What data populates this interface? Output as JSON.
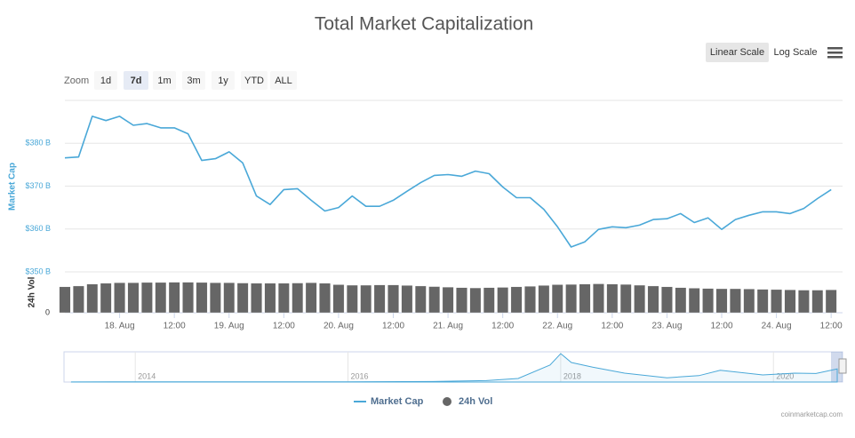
{
  "chart_data": {
    "type": "line",
    "title": "Total Market Capitalization",
    "scale_buttons": [
      "Linear Scale",
      "Log Scale"
    ],
    "selected_scale": "Linear Scale",
    "zoom": {
      "label": "Zoom",
      "buttons": [
        "1d",
        "7d",
        "1m",
        "3m",
        "1y",
        "YTD",
        "ALL"
      ],
      "selected": "7d"
    },
    "y_label": "Market Cap",
    "y2_label": "24h Vol",
    "credits": "coinmarketcap.com",
    "legend": "bottom",
    "grid": true,
    "xlim": [
      "Aug 17 12:00",
      "Aug 24 14:30"
    ],
    "xticks": [
      {
        "value": "Aug 18 00:00",
        "label": "18. Aug"
      },
      {
        "value": "Aug 18 12:00",
        "label": "12:00"
      },
      {
        "value": "Aug 19 00:00",
        "label": "19. Aug"
      },
      {
        "value": "Aug 19 12:00",
        "label": "12:00"
      },
      {
        "value": "Aug 20 00:00",
        "label": "20. Aug"
      },
      {
        "value": "Aug 20 12:00",
        "label": "12:00"
      },
      {
        "value": "Aug 21 00:00",
        "label": "21. Aug"
      },
      {
        "value": "Aug 21 12:00",
        "label": "12:00"
      },
      {
        "value": "Aug 22 00:00",
        "label": "22. Aug"
      },
      {
        "value": "Aug 22 12:00",
        "label": "12:00"
      },
      {
        "value": "Aug 23 00:00",
        "label": "23. Aug"
      },
      {
        "value": "Aug 23 12:00",
        "label": "12:00"
      },
      {
        "value": "Aug 24 00:00",
        "label": "24. Aug"
      },
      {
        "value": "Aug 24 12:00",
        "label": "12:00"
      }
    ],
    "ylim": [
      350,
      390
    ],
    "yticks": [
      {
        "value": 350,
        "label": "$350 B"
      },
      {
        "value": 360,
        "label": "$360 B"
      },
      {
        "value": 370,
        "label": "$370 B"
      },
      {
        "value": 380,
        "label": "$380 B"
      }
    ],
    "y2lim": [
      0,
      150
    ],
    "y2ticks": [
      0
    ],
    "x": [
      "Aug 17 12:00",
      "Aug 17 15:00",
      "Aug 17 18:00",
      "Aug 17 21:00",
      "Aug 18 00:00",
      "Aug 18 03:00",
      "Aug 18 06:00",
      "Aug 18 09:00",
      "Aug 18 12:00",
      "Aug 18 15:00",
      "Aug 18 18:00",
      "Aug 18 21:00",
      "Aug 19 00:00",
      "Aug 19 03:00",
      "Aug 19 06:00",
      "Aug 19 09:00",
      "Aug 19 12:00",
      "Aug 19 15:00",
      "Aug 19 18:00",
      "Aug 19 21:00",
      "Aug 20 00:00",
      "Aug 20 03:00",
      "Aug 20 06:00",
      "Aug 20 09:00",
      "Aug 20 12:00",
      "Aug 20 15:00",
      "Aug 20 18:00",
      "Aug 20 21:00",
      "Aug 21 00:00",
      "Aug 21 03:00",
      "Aug 21 06:00",
      "Aug 21 09:00",
      "Aug 21 12:00",
      "Aug 21 15:00",
      "Aug 21 18:00",
      "Aug 21 21:00",
      "Aug 22 00:00",
      "Aug 22 03:00",
      "Aug 22 06:00",
      "Aug 22 09:00",
      "Aug 22 12:00",
      "Aug 22 15:00",
      "Aug 22 18:00",
      "Aug 22 21:00",
      "Aug 23 00:00",
      "Aug 23 03:00",
      "Aug 23 06:00",
      "Aug 23 09:00",
      "Aug 23 12:00",
      "Aug 23 15:00",
      "Aug 23 18:00",
      "Aug 23 21:00",
      "Aug 24 00:00",
      "Aug 24 03:00",
      "Aug 24 06:00",
      "Aug 24 09:00",
      "Aug 24 12:00"
    ],
    "series": [
      {
        "name": "Market Cap",
        "color": "#4aa8d8",
        "type": "line",
        "values": [
          376.6,
          376.8,
          386.3,
          385.3,
          386.3,
          384.2,
          384.6,
          383.6,
          383.6,
          382.2,
          376.0,
          376.4,
          378.0,
          375.4,
          367.7,
          365.7,
          369.2,
          369.4,
          366.7,
          364.2,
          365.0,
          367.7,
          365.3,
          365.3,
          366.7,
          368.8,
          370.8,
          372.5,
          372.7,
          372.3,
          373.5,
          372.9,
          369.8,
          367.3,
          367.3,
          364.6,
          360.5,
          355.8,
          357.0,
          359.9,
          360.5,
          360.3,
          360.9,
          362.2,
          362.4,
          363.6,
          361.5,
          362.6,
          359.9,
          362.2,
          363.2,
          364.0,
          364.0,
          363.6,
          364.8,
          367.1,
          369.2
        ]
      },
      {
        "name": "24h Vol",
        "color": "#666666",
        "type": "bar",
        "axis": "y2",
        "values": [
          95,
          98,
          105,
          108,
          110,
          110,
          111,
          111,
          112,
          112,
          111,
          110,
          110,
          109,
          108,
          108,
          108,
          109,
          110,
          108,
          103,
          101,
          101,
          102,
          102,
          100,
          98,
          96,
          94,
          92,
          91,
          92,
          93,
          95,
          97,
          100,
          103,
          104,
          105,
          106,
          105,
          104,
          101,
          98,
          95,
          92,
          90,
          89,
          88,
          88,
          87,
          86,
          85,
          84,
          83,
          83,
          84
        ]
      }
    ],
    "navigator": {
      "xlim": [
        2013.33,
        2020.65
      ],
      "ylim": [
        0,
        850
      ],
      "xticks": [
        2014,
        2016,
        2018,
        2020
      ],
      "x": [
        2013.4,
        2014,
        2015,
        2016,
        2016.8,
        2017.3,
        2017.6,
        2017.9,
        2018.0,
        2018.1,
        2018.3,
        2018.6,
        2019.0,
        2019.3,
        2019.5,
        2019.9,
        2020.2,
        2020.4,
        2020.6
      ],
      "values": [
        2,
        8,
        4,
        7,
        15,
        40,
        100,
        480,
        800,
        550,
        420,
        250,
        120,
        180,
        330,
        200,
        250,
        240,
        370
      ]
    }
  }
}
